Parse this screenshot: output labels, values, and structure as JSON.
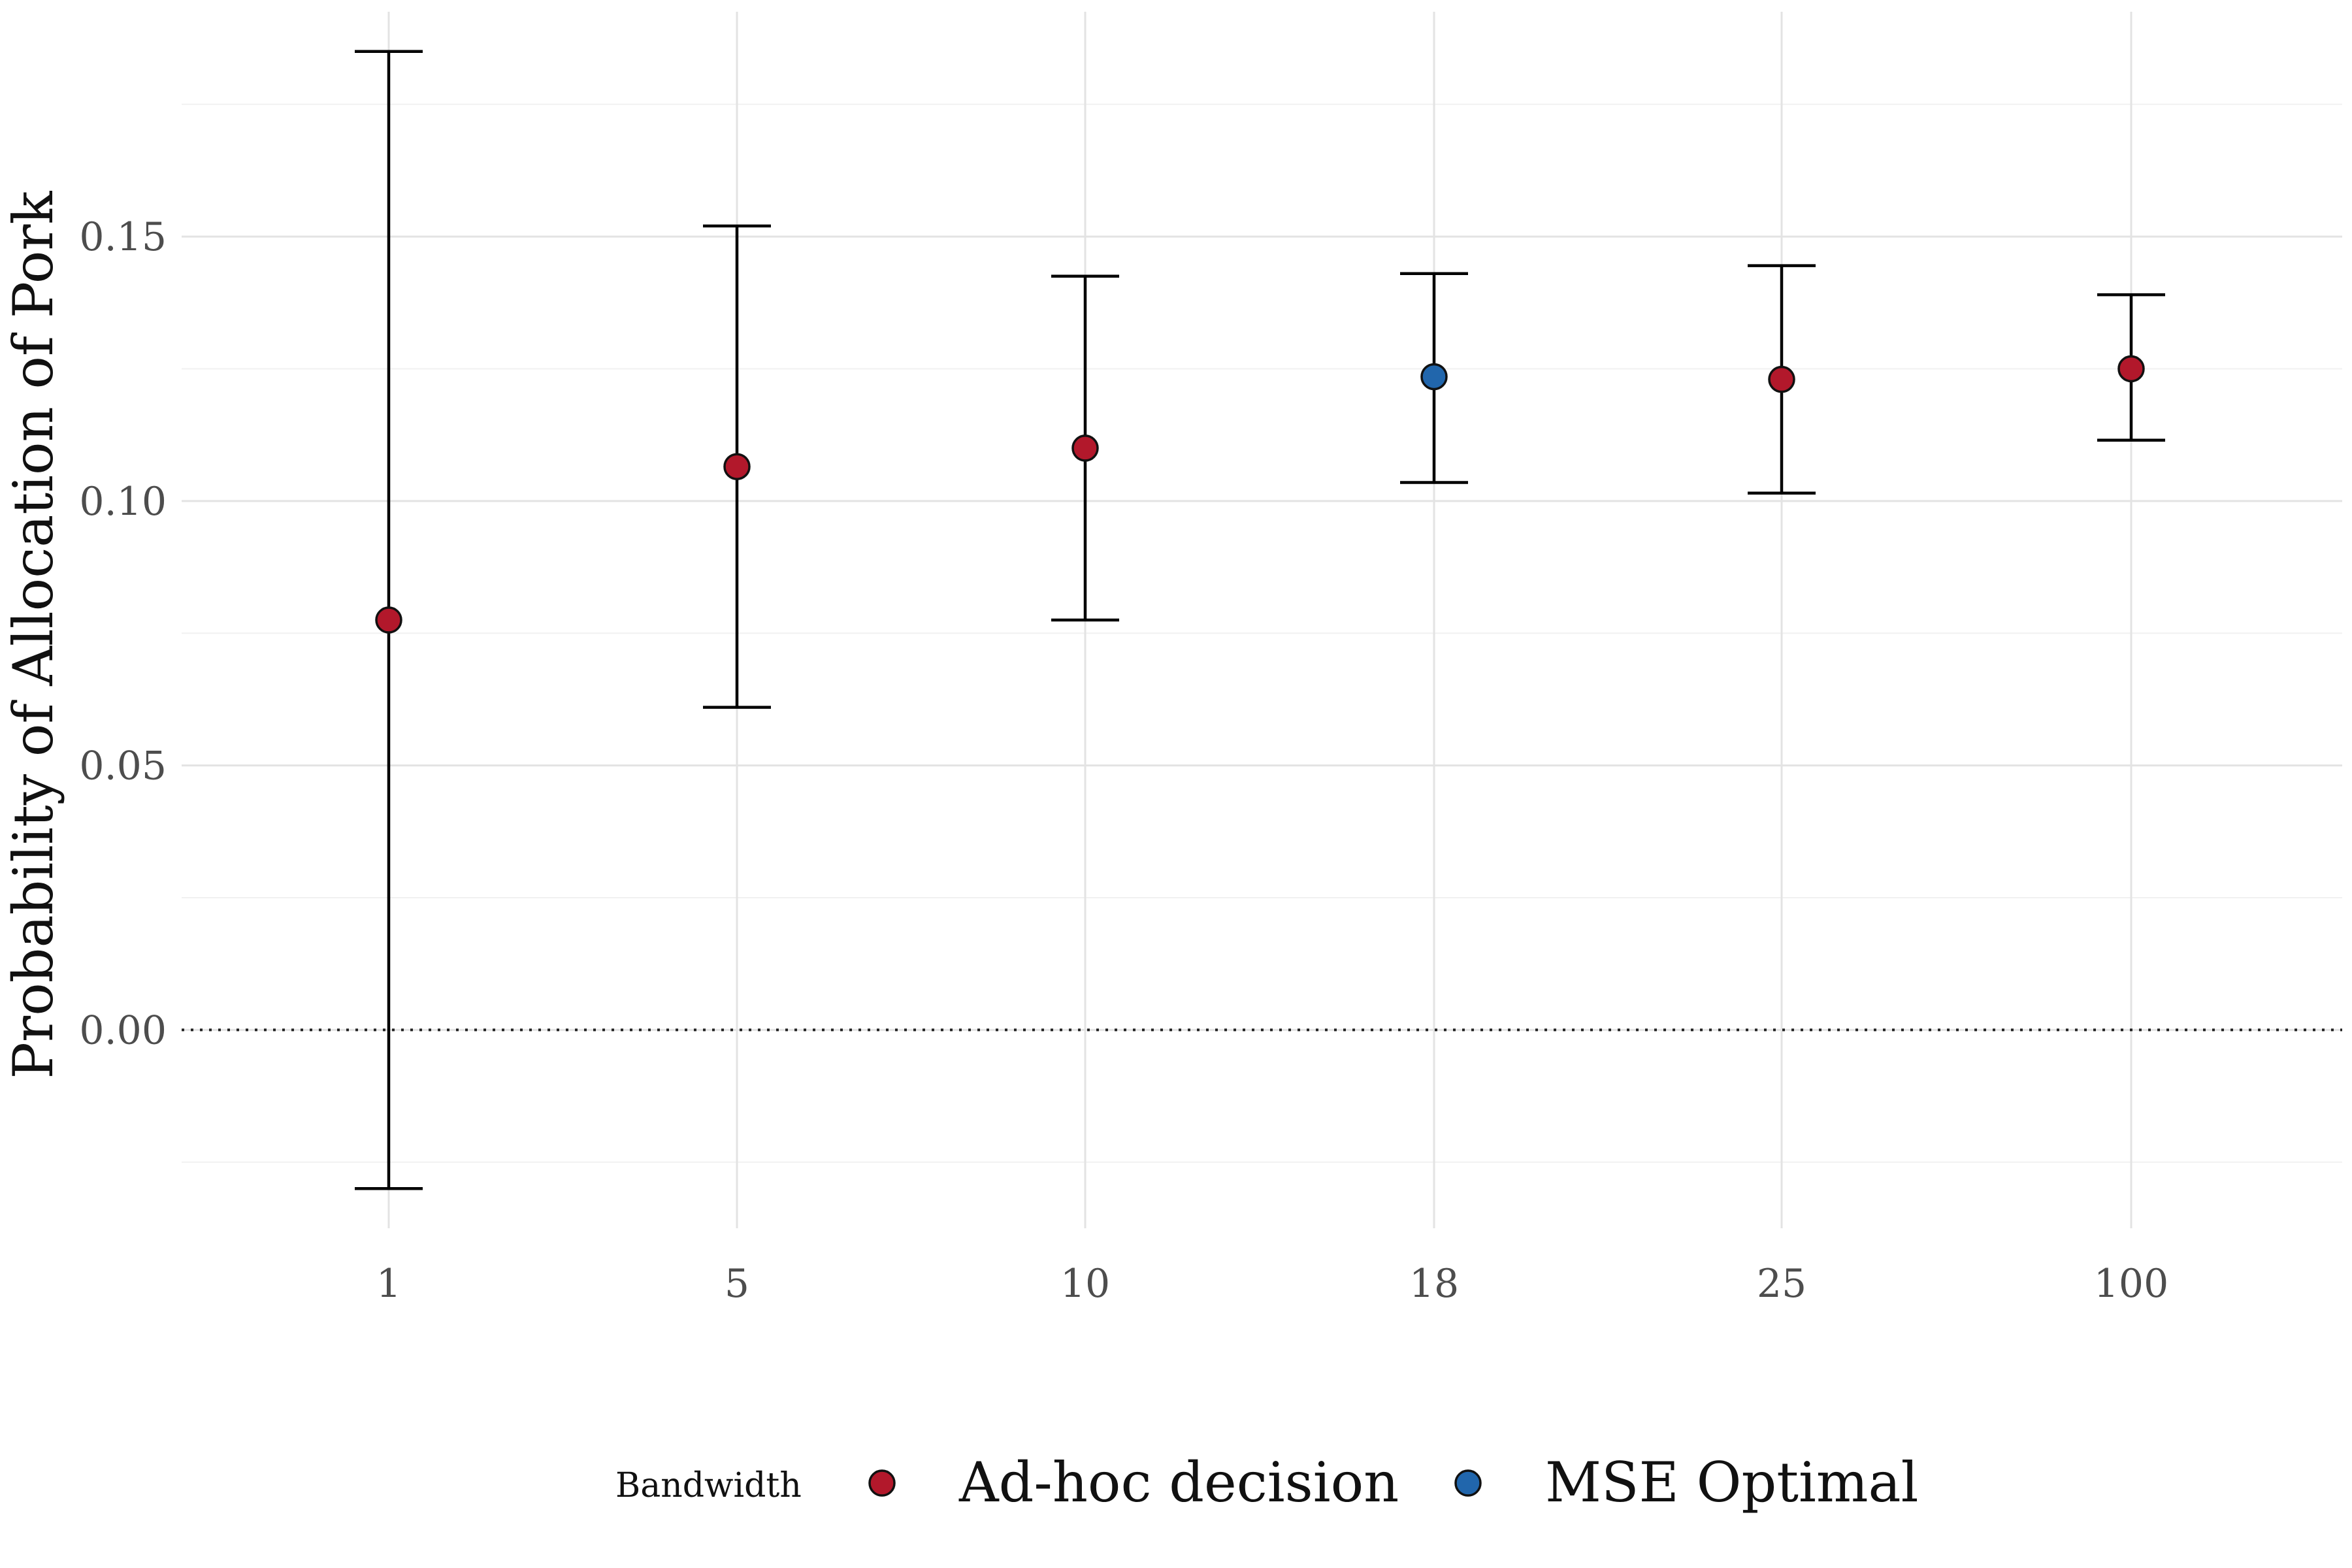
{
  "chart_data": {
    "type": "scatter",
    "title": "",
    "xlabel": "",
    "ylabel": "Probability of Allocation of Pork",
    "x_type": "categorical",
    "categories": [
      "1",
      "5",
      "10",
      "18",
      "25",
      "100"
    ],
    "series": [
      {
        "name": "Ad-hoc decision",
        "color": "#b2182b",
        "points": [
          {
            "x": "1",
            "y": 0.0775,
            "ymin": -0.03,
            "ymax": 0.185
          },
          {
            "x": "5",
            "y": 0.1065,
            "ymin": 0.061,
            "ymax": 0.152
          },
          {
            "x": "10",
            "y": 0.11,
            "ymin": 0.0775,
            "ymax": 0.1425
          },
          {
            "x": "25",
            "y": 0.123,
            "ymin": 0.1015,
            "ymax": 0.1445
          },
          {
            "x": "100",
            "y": 0.125,
            "ymin": 0.1115,
            "ymax": 0.139
          }
        ]
      },
      {
        "name": "MSE Optimal",
        "color": "#2166ac",
        "points": [
          {
            "x": "18",
            "y": 0.1235,
            "ymin": 0.1035,
            "ymax": 0.143
          }
        ]
      }
    ],
    "yticks": [
      0.0,
      0.05,
      0.1,
      0.15
    ],
    "ytick_labels": [
      "0.00",
      "0.05",
      "0.10",
      "0.15"
    ],
    "ylim": [
      -0.0375,
      0.1925
    ],
    "grid": true,
    "reference_line": {
      "y": 0.0,
      "style": "dotted"
    },
    "legend": {
      "title": "Bandwidth",
      "position": "bottom",
      "entries": [
        "Ad-hoc decision",
        "MSE Optimal"
      ]
    }
  }
}
